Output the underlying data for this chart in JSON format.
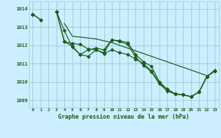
{
  "title": "Graphe pression niveau de la mer (hPa)",
  "x": [
    0,
    1,
    2,
    3,
    4,
    5,
    6,
    7,
    8,
    9,
    10,
    11,
    12,
    13,
    14,
    15,
    16,
    17,
    18,
    19,
    20,
    21,
    22,
    23
  ],
  "line1": [
    1013.7,
    1013.4,
    null,
    1013.85,
    1012.8,
    1011.9,
    1011.5,
    1011.4,
    1011.75,
    1011.6,
    1012.3,
    1012.25,
    1012.15,
    1011.5,
    1011.1,
    1010.85,
    1010.0,
    1009.6,
    1009.35,
    1009.3,
    1009.2,
    1009.45,
    1010.3,
    1010.6
  ],
  "line2": [
    1013.7,
    1013.4,
    null,
    1013.85,
    1012.2,
    1011.95,
    1011.5,
    1011.75,
    1011.85,
    1011.75,
    1012.3,
    1012.2,
    1012.05,
    1011.35,
    1010.9,
    1010.55,
    1009.9,
    1009.5,
    1009.35,
    1009.3,
    1009.2,
    1009.45,
    1010.3,
    1010.6
  ],
  "line3": [
    1013.7,
    null,
    null,
    1013.85,
    1012.2,
    1012.1,
    1012.05,
    1011.8,
    1011.75,
    1011.55,
    1011.75,
    1011.6,
    1011.5,
    1011.25,
    1011.0,
    1010.6,
    1009.95,
    1009.6,
    1009.35,
    1009.3,
    1009.2,
    1009.45,
    1010.3,
    1010.65
  ],
  "line4": [
    1013.7,
    null,
    null,
    null,
    1013.2,
    1012.5,
    1012.45,
    1012.4,
    1012.35,
    1012.25,
    1012.15,
    1012.0,
    1011.85,
    1011.7,
    1011.55,
    1011.4,
    1011.25,
    1011.1,
    1010.95,
    1010.8,
    1010.65,
    1010.5,
    1010.35,
    null
  ],
  "ylim": [
    1008.6,
    1014.4
  ],
  "yticks": [
    1009,
    1010,
    1011,
    1012,
    1013,
    1014
  ],
  "xlim": [
    -0.5,
    23.5
  ],
  "line_color": "#1a5c1a",
  "bg_color": "#cceeff",
  "grid_color": "#99cccc",
  "title_color": "#1a5c1a",
  "markersize": 2.5,
  "linewidth": 0.9
}
